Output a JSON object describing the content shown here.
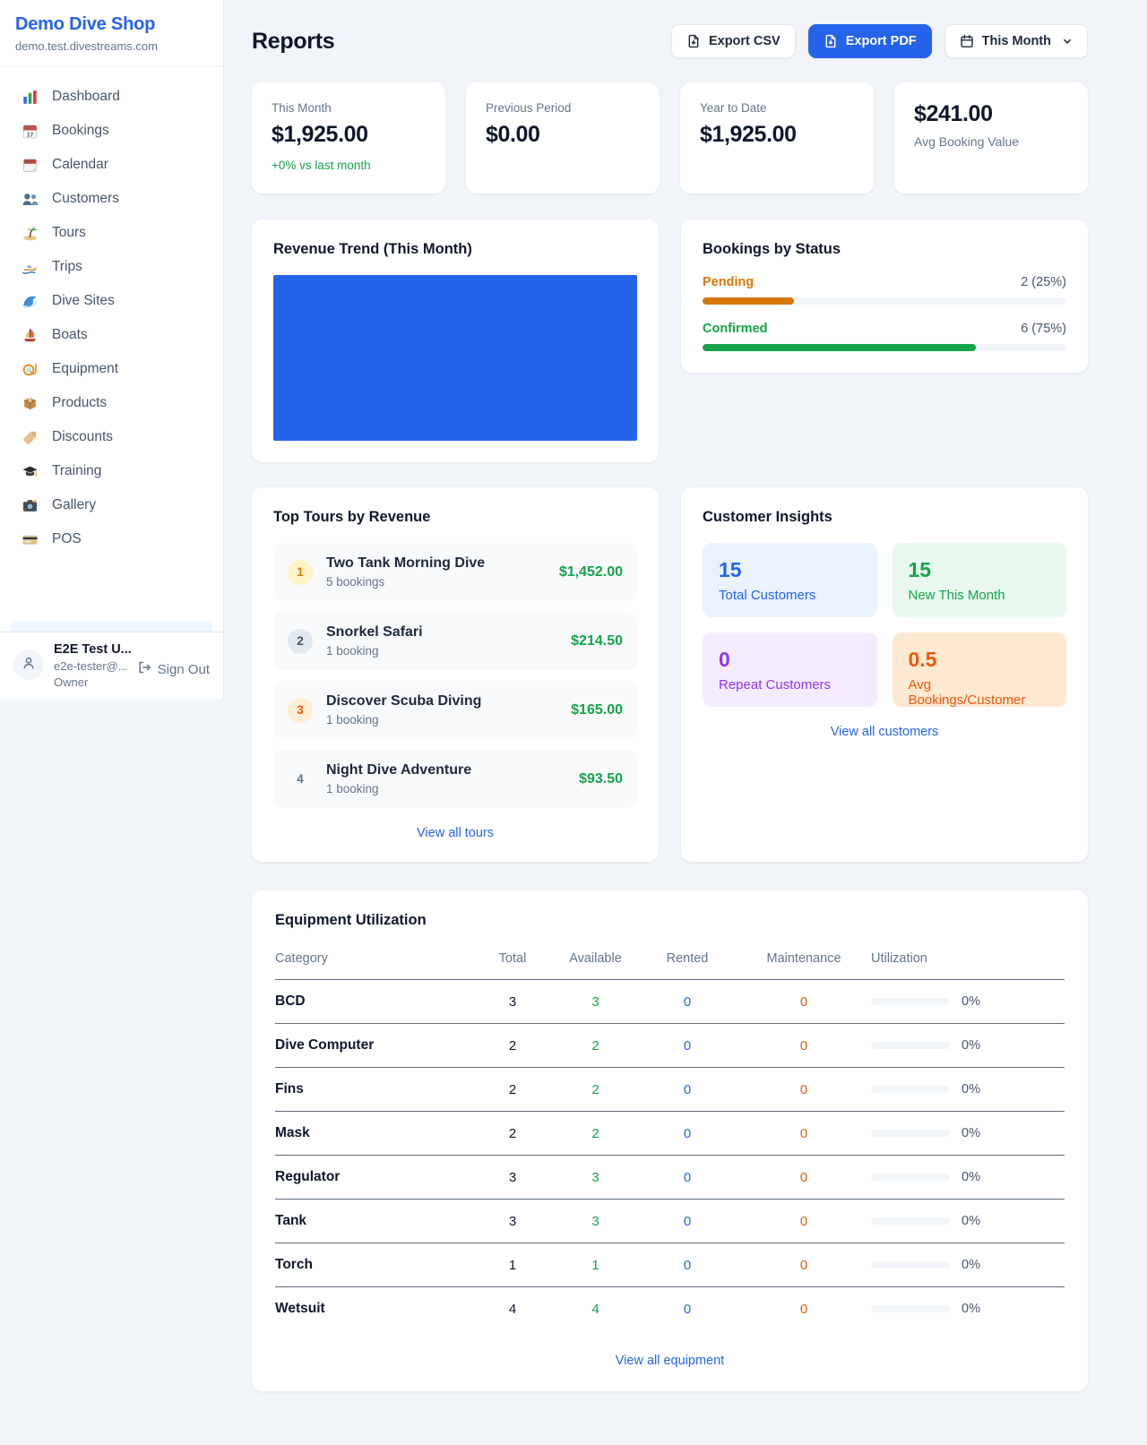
{
  "colors": {
    "accent": "#2563eb",
    "green": "#16a34a",
    "amber": "#d97706",
    "deep_orange": "#ea580c",
    "purple": "#9333ea"
  },
  "sidebar": {
    "brand": {
      "name": "Demo Dive Shop",
      "domain": "demo.test.divestreams.com"
    },
    "nav": [
      {
        "icon": "bar-chart",
        "label": "Dashboard"
      },
      {
        "icon": "bookings-calendar",
        "label": "Bookings"
      },
      {
        "icon": "tear-off-calendar",
        "label": "Calendar"
      },
      {
        "icon": "people",
        "label": "Customers"
      },
      {
        "icon": "island",
        "label": "Tours"
      },
      {
        "icon": "speedboat",
        "label": "Trips"
      },
      {
        "icon": "wave",
        "label": "Dive Sites"
      },
      {
        "icon": "sailboat",
        "label": "Boats"
      },
      {
        "icon": "diving-mask",
        "label": "Equipment"
      },
      {
        "icon": "package",
        "label": "Products"
      },
      {
        "icon": "tag",
        "label": "Discounts"
      },
      {
        "icon": "graduation-cap",
        "label": "Training"
      },
      {
        "icon": "camera",
        "label": "Gallery"
      },
      {
        "icon": "credit-card",
        "label": "POS"
      }
    ],
    "user": {
      "name": "E2E Test U...",
      "email": "e2e-tester@...",
      "role": "Owner",
      "sign_out_label": "Sign Out"
    }
  },
  "header": {
    "title": "Reports",
    "export_csv_label": "Export CSV",
    "export_pdf_label": "Export PDF",
    "period_label": "This Month"
  },
  "stats": [
    {
      "label": "This Month",
      "value": "$1,925.00",
      "note": "+0% vs last month",
      "note_color": "#16a34a"
    },
    {
      "label": "Previous Period",
      "value": "$0.00"
    },
    {
      "label": "Year to Date",
      "value": "$1,925.00"
    },
    {
      "label": "Avg Booking Value",
      "value": "$241.00",
      "value_first": true
    }
  ],
  "revenue_trend": {
    "title": "Revenue Trend (This Month)",
    "fill_color": "#2563eb"
  },
  "chart_data": [
    {
      "type": "bar",
      "title": "Revenue Trend (This Month)",
      "categories": [
        "This Month"
      ],
      "values": [
        1925
      ],
      "bar_color": "#2563eb",
      "note": "single bar filling entire plot area, no axes or labels visible"
    },
    {
      "type": "bar",
      "title": "Bookings by Status",
      "categories": [
        "Pending",
        "Confirmed"
      ],
      "values": [
        2,
        6
      ],
      "percents": [
        25,
        75
      ],
      "bar_colors": [
        "#d97706",
        "#16a34a"
      ]
    }
  ],
  "bookings_by_status": {
    "title": "Bookings by Status",
    "rows": [
      {
        "label": "Pending",
        "value": "2 (25%)",
        "pct": 25,
        "color": "#d97706"
      },
      {
        "label": "Confirmed",
        "value": "6 (75%)",
        "pct": 75,
        "color": "#16a34a"
      }
    ]
  },
  "top_tours": {
    "title": "Top Tours by Revenue",
    "link": "View all tours",
    "items": [
      {
        "rank": "1",
        "name": "Two Tank Morning Dive",
        "bookings": "5 bookings",
        "amount": "$1,452.00",
        "badge_bg": "#fef3c7",
        "badge_color": "#d97706"
      },
      {
        "rank": "2",
        "name": "Snorkel Safari",
        "bookings": "1 booking",
        "amount": "$214.50",
        "badge_bg": "#e2e8f0",
        "badge_color": "#475569"
      },
      {
        "rank": "3",
        "name": "Discover Scuba Diving",
        "bookings": "1 booking",
        "amount": "$165.00",
        "badge_bg": "#ffedd5",
        "badge_color": "#ea580c"
      },
      {
        "rank": "4",
        "name": "Night Dive Adventure",
        "bookings": "1 booking",
        "amount": "$93.50",
        "badge_bg": "transparent",
        "badge_color": "#64748b"
      }
    ]
  },
  "customer_insights": {
    "title": "Customer Insights",
    "link": "View all customers",
    "tiles": [
      {
        "value": "15",
        "label": "Total Customers",
        "bg": "#eaf2fe",
        "color": "#2563eb"
      },
      {
        "value": "15",
        "label": "New This Month",
        "bg": "#e8f8ee",
        "color": "#16a34a"
      },
      {
        "value": "0",
        "label": "Repeat Customers",
        "bg": "#f4ecfe",
        "color": "#9333ea"
      },
      {
        "value": "0.5",
        "label": "Avg Bookings/Customer",
        "bg": "#fde8d1",
        "color": "#ea580c"
      }
    ]
  },
  "equipment": {
    "title": "Equipment Utilization",
    "link": "View all equipment",
    "columns": [
      "Category",
      "Total",
      "Available",
      "Rented",
      "Maintenance",
      "Utilization"
    ],
    "rows": [
      {
        "category": "BCD",
        "total": "3",
        "available": "3",
        "rented": "0",
        "maintenance": "0",
        "utilization": "0%"
      },
      {
        "category": "Dive Computer",
        "total": "2",
        "available": "2",
        "rented": "0",
        "maintenance": "0",
        "utilization": "0%"
      },
      {
        "category": "Fins",
        "total": "2",
        "available": "2",
        "rented": "0",
        "maintenance": "0",
        "utilization": "0%"
      },
      {
        "category": "Mask",
        "total": "2",
        "available": "2",
        "rented": "0",
        "maintenance": "0",
        "utilization": "0%"
      },
      {
        "category": "Regulator",
        "total": "3",
        "available": "3",
        "rented": "0",
        "maintenance": "0",
        "utilization": "0%"
      },
      {
        "category": "Tank",
        "total": "3",
        "available": "3",
        "rented": "0",
        "maintenance": "0",
        "utilization": "0%"
      },
      {
        "category": "Torch",
        "total": "1",
        "available": "1",
        "rented": "0",
        "maintenance": "0",
        "utilization": "0%"
      },
      {
        "category": "Wetsuit",
        "total": "4",
        "available": "4",
        "rented": "0",
        "maintenance": "0",
        "utilization": "0%"
      }
    ]
  }
}
